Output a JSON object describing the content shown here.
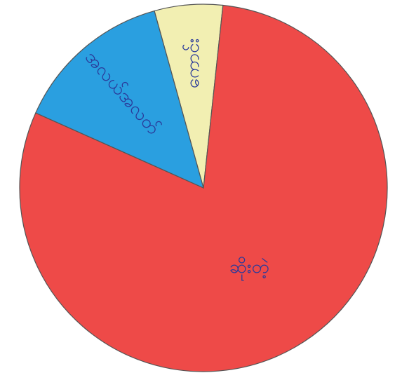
{
  "chart_data": {
    "type": "pie",
    "categories": [
      "ကောင်း",
      "ဆိုးတဲ့",
      "အလယ်အလတ်"
    ],
    "values": [
      6,
      80,
      14
    ],
    "colors": [
      "#f2efb2",
      "#ee4a48",
      "#2a9fe0"
    ]
  }
}
